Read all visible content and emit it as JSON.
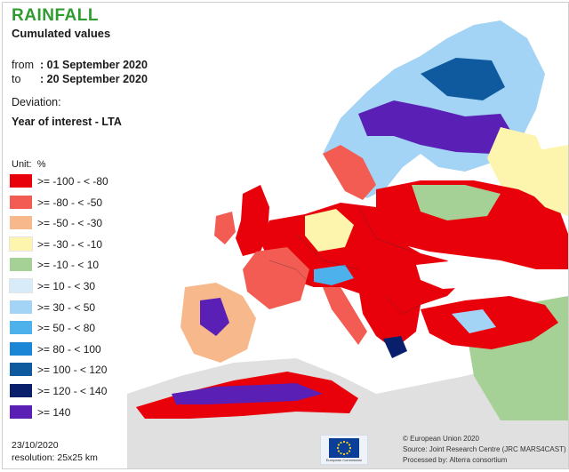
{
  "header": {
    "title": "RAINFALL",
    "subtitle": "Cumulated values",
    "from_label": "from",
    "from_value": ": 01 September 2020",
    "to_label": "to",
    "to_value": ": 20 September 2020",
    "deviation_label": "Deviation:",
    "deviation_value": "Year of interest - LTA"
  },
  "legend": {
    "unit_label": "Unit:",
    "unit_value": "%",
    "classes": [
      {
        "label": ">= -100 - < -80",
        "color": "#e8000b"
      },
      {
        "label": ">= -80 - < -50",
        "color": "#f25c53"
      },
      {
        "label": ">= -50 - < -30",
        "color": "#f7b98c"
      },
      {
        "label": ">= -30 - < -10",
        "color": "#fdf5ad"
      },
      {
        "label": ">= -10 - < 10",
        "color": "#a6d196"
      },
      {
        "label": ">= 10 - < 30",
        "color": "#d7ecf8"
      },
      {
        "label": ">= 30 - < 50",
        "color": "#a3d3f5"
      },
      {
        "label": ">= 50 - < 80",
        "color": "#4db2ec"
      },
      {
        "label": ">= 80 - < 100",
        "color": "#1c86d6"
      },
      {
        "label": ">= 100 - < 120",
        "color": "#0f5a9e"
      },
      {
        "label": ">= 120 - < 140",
        "color": "#0a1f6b"
      },
      {
        "label": ">= 140",
        "color": "#5a1fb5"
      }
    ]
  },
  "map_colors": {
    "outside": "#e0e0e0",
    "water": "#ffffff",
    "border": "#333333"
  },
  "footer": {
    "date": "23/10/2020",
    "resolution": "resolution: 25x25 km",
    "logo_caption": "European Commission",
    "credit_lines": [
      "© European Union 2020",
      "Source: Joint Research Centre (JRC MARS4CAST)",
      "Processed by: Alterra consortium"
    ]
  }
}
